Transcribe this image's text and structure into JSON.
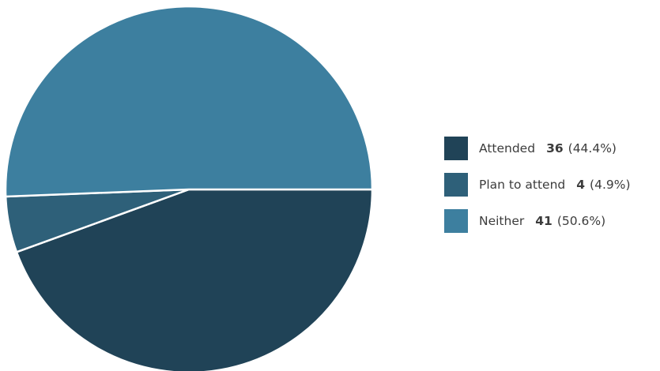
{
  "chart_data": {
    "type": "pie",
    "title": "",
    "legend_position": "right",
    "slices": [
      {
        "label": "Attended",
        "value": 36,
        "percent_label": "(44.4%)",
        "color": "#204357"
      },
      {
        "label": "Plan to attend",
        "value": 4,
        "percent_label": "(4.9%)",
        "color": "#2e6079"
      },
      {
        "label": "Neither",
        "value": 41,
        "percent_label": "(50.6%)",
        "color": "#3d7f9f"
      }
    ]
  }
}
